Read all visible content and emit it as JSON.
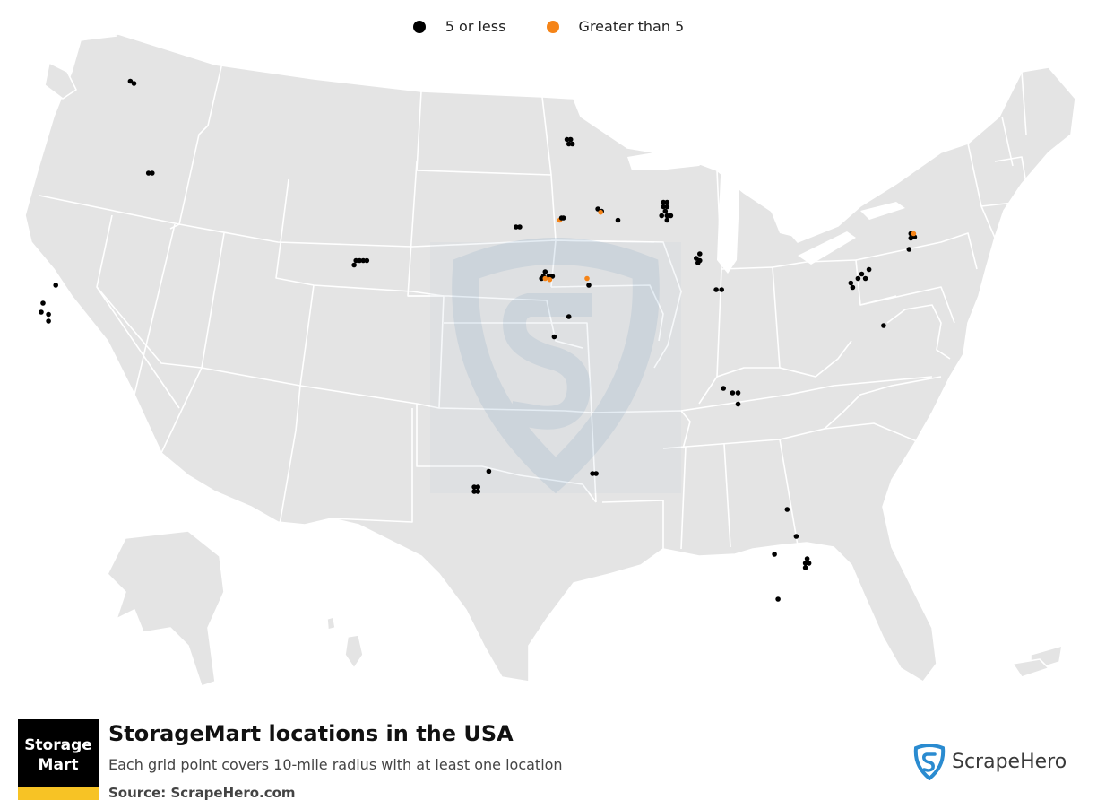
{
  "legend": {
    "items": [
      {
        "label": "5 or less",
        "color": "#000000"
      },
      {
        "label": "Greater than 5",
        "color": "#f58418"
      }
    ]
  },
  "header": {
    "title": "StorageMart locations in the USA",
    "subtitle": "Each grid point covers 10-mile radius with at least one location",
    "source": "Source: ScrapeHero.com"
  },
  "logo": {
    "line1": "Storage",
    "line2": "Mart"
  },
  "brand": {
    "name": "ScrapeHero",
    "icon": "shield-s-icon",
    "color": "#2a8bd0"
  },
  "map": {
    "land_color": "#e4e4e4",
    "points": [
      {
        "lon": -117.4,
        "lat": 47.7,
        "category": "5 or less"
      },
      {
        "lon": -117.2,
        "lat": 47.6,
        "category": "5 or less"
      },
      {
        "lon": -116.2,
        "lat": 43.6,
        "category": "5 or less"
      },
      {
        "lon": -116.4,
        "lat": 43.6,
        "category": "5 or less"
      },
      {
        "lon": -122.2,
        "lat": 37.8,
        "category": "5 or less"
      },
      {
        "lon": -122.3,
        "lat": 37.4,
        "category": "5 or less"
      },
      {
        "lon": -121.9,
        "lat": 37.3,
        "category": "5 or less"
      },
      {
        "lon": -121.5,
        "lat": 38.6,
        "category": "5 or less"
      },
      {
        "lon": -121.9,
        "lat": 37.0,
        "category": "5 or less"
      },
      {
        "lon": -105.0,
        "lat": 39.7,
        "category": "5 or less"
      },
      {
        "lon": -104.8,
        "lat": 39.7,
        "category": "5 or less"
      },
      {
        "lon": -104.6,
        "lat": 39.7,
        "category": "5 or less"
      },
      {
        "lon": -104.4,
        "lat": 39.7,
        "category": "5 or less"
      },
      {
        "lon": -105.1,
        "lat": 39.5,
        "category": "5 or less"
      },
      {
        "lon": -93.4,
        "lat": 45.1,
        "category": "5 or less"
      },
      {
        "lon": -93.2,
        "lat": 45.1,
        "category": "5 or less"
      },
      {
        "lon": -93.3,
        "lat": 44.9,
        "category": "5 or less"
      },
      {
        "lon": -93.1,
        "lat": 44.9,
        "category": "5 or less"
      },
      {
        "lon": -93.6,
        "lat": 41.6,
        "category": "5 or less"
      },
      {
        "lon": -93.8,
        "lat": 41.5,
        "category": "Greater than 5"
      },
      {
        "lon": -93.7,
        "lat": 41.6,
        "category": "5 or less"
      },
      {
        "lon": -91.7,
        "lat": 42.0,
        "category": "5 or less"
      },
      {
        "lon": -91.5,
        "lat": 41.9,
        "category": "5 or less"
      },
      {
        "lon": -91.55,
        "lat": 41.85,
        "category": "Greater than 5"
      },
      {
        "lon": -96.0,
        "lat": 41.2,
        "category": "5 or less"
      },
      {
        "lon": -96.2,
        "lat": 41.2,
        "category": "5 or less"
      },
      {
        "lon": -94.6,
        "lat": 39.2,
        "category": "5 or less"
      },
      {
        "lon": -94.4,
        "lat": 39.0,
        "category": "5 or less"
      },
      {
        "lon": -94.7,
        "lat": 39.0,
        "category": "5 or less"
      },
      {
        "lon": -94.2,
        "lat": 39.0,
        "category": "5 or less"
      },
      {
        "lon": -94.8,
        "lat": 38.9,
        "category": "5 or less"
      },
      {
        "lon": -94.6,
        "lat": 38.9,
        "category": "Greater than 5"
      },
      {
        "lon": -94.35,
        "lat": 38.85,
        "category": "Greater than 5"
      },
      {
        "lon": -92.3,
        "lat": 38.9,
        "category": "Greater than 5"
      },
      {
        "lon": -92.2,
        "lat": 38.6,
        "category": "5 or less"
      },
      {
        "lon": -93.3,
        "lat": 37.2,
        "category": "5 or less"
      },
      {
        "lon": -94.1,
        "lat": 36.3,
        "category": "5 or less"
      },
      {
        "lon": -90.6,
        "lat": 41.5,
        "category": "5 or less"
      },
      {
        "lon": -88.1,
        "lat": 42.3,
        "category": "5 or less"
      },
      {
        "lon": -87.9,
        "lat": 42.3,
        "category": "5 or less"
      },
      {
        "lon": -88.1,
        "lat": 42.1,
        "category": "5 or less"
      },
      {
        "lon": -87.9,
        "lat": 42.1,
        "category": "5 or less"
      },
      {
        "lon": -88.0,
        "lat": 41.9,
        "category": "5 or less"
      },
      {
        "lon": -88.2,
        "lat": 41.7,
        "category": "5 or less"
      },
      {
        "lon": -87.9,
        "lat": 41.7,
        "category": "5 or less"
      },
      {
        "lon": -87.7,
        "lat": 41.7,
        "category": "5 or less"
      },
      {
        "lon": -87.9,
        "lat": 41.5,
        "category": "5 or less"
      },
      {
        "lon": -86.1,
        "lat": 40.0,
        "category": "5 or less"
      },
      {
        "lon": -86.3,
        "lat": 39.8,
        "category": "5 or less"
      },
      {
        "lon": -86.1,
        "lat": 39.7,
        "category": "5 or less"
      },
      {
        "lon": -86.2,
        "lat": 39.6,
        "category": "5 or less"
      },
      {
        "lon": -85.2,
        "lat": 38.4,
        "category": "5 or less"
      },
      {
        "lon": -84.9,
        "lat": 38.4,
        "category": "5 or less"
      },
      {
        "lon": -84.8,
        "lat": 34.0,
        "category": "5 or less"
      },
      {
        "lon": -84.3,
        "lat": 33.8,
        "category": "5 or less"
      },
      {
        "lon": -84.0,
        "lat": 33.8,
        "category": "5 or less"
      },
      {
        "lon": -84.0,
        "lat": 33.3,
        "category": "5 or less"
      },
      {
        "lon": -74.5,
        "lat": 40.9,
        "category": "5 or less"
      },
      {
        "lon": -74.5,
        "lat": 40.7,
        "category": "5 or less"
      },
      {
        "lon": -74.3,
        "lat": 40.75,
        "category": "5 or less"
      },
      {
        "lon": -74.35,
        "lat": 40.9,
        "category": "Greater than 5"
      },
      {
        "lon": -74.6,
        "lat": 40.2,
        "category": "5 or less"
      },
      {
        "lon": -76.8,
        "lat": 39.3,
        "category": "5 or less"
      },
      {
        "lon": -77.2,
        "lat": 39.1,
        "category": "5 or less"
      },
      {
        "lon": -77.4,
        "lat": 38.9,
        "category": "5 or less"
      },
      {
        "lon": -77.0,
        "lat": 38.9,
        "category": "5 or less"
      },
      {
        "lon": -77.8,
        "lat": 38.7,
        "category": "5 or less"
      },
      {
        "lon": -77.7,
        "lat": 38.5,
        "category": "5 or less"
      },
      {
        "lon": -76.0,
        "lat": 36.8,
        "category": "5 or less"
      },
      {
        "lon": -97.7,
        "lat": 30.3,
        "category": "5 or less"
      },
      {
        "lon": -98.5,
        "lat": 29.6,
        "category": "5 or less"
      },
      {
        "lon": -98.3,
        "lat": 29.6,
        "category": "5 or less"
      },
      {
        "lon": -98.5,
        "lat": 29.4,
        "category": "5 or less"
      },
      {
        "lon": -98.3,
        "lat": 29.4,
        "category": "5 or less"
      },
      {
        "lon": -92.0,
        "lat": 30.2,
        "category": "5 or less"
      },
      {
        "lon": -91.8,
        "lat": 30.2,
        "category": "5 or less"
      },
      {
        "lon": -81.3,
        "lat": 28.6,
        "category": "5 or less"
      },
      {
        "lon": -80.8,
        "lat": 27.4,
        "category": "5 or less"
      },
      {
        "lon": -82.0,
        "lat": 26.6,
        "category": "5 or less"
      },
      {
        "lon": -80.2,
        "lat": 26.4,
        "category": "5 or less"
      },
      {
        "lon": -80.3,
        "lat": 26.2,
        "category": "5 or less"
      },
      {
        "lon": -80.1,
        "lat": 26.2,
        "category": "5 or less"
      },
      {
        "lon": -80.3,
        "lat": 26.0,
        "category": "5 or less"
      },
      {
        "lon": -81.8,
        "lat": 24.6,
        "category": "5 or less"
      }
    ]
  }
}
